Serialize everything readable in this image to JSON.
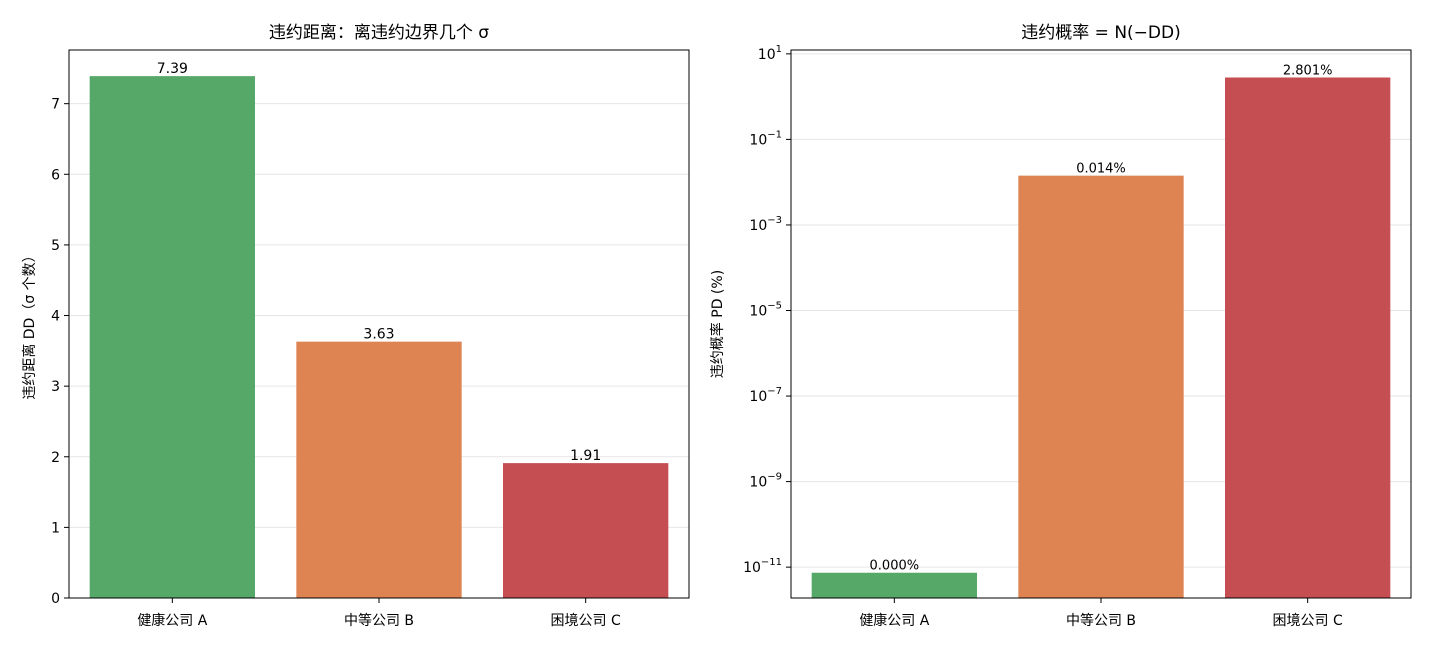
{
  "chart_data": [
    {
      "type": "bar",
      "title": "违约距离：离违约边界几个 σ",
      "xlabel": "",
      "ylabel": "违约距离 DD（σ 个数）",
      "categories": [
        "健康公司 A",
        "中等公司 B",
        "困境公司 C"
      ],
      "values": [
        7.39,
        3.63,
        1.91
      ],
      "data_labels": [
        "7.39",
        "3.63",
        "1.91"
      ],
      "colors": [
        "#55a868",
        "#dd8452",
        "#c44e52"
      ],
      "ylim": [
        0,
        7.76
      ],
      "yticks": [
        0,
        1,
        2,
        3,
        4,
        5,
        6,
        7
      ],
      "ytick_labels": [
        "0",
        "1",
        "2",
        "3",
        "4",
        "5",
        "6",
        "7"
      ],
      "grid": "y"
    },
    {
      "type": "bar",
      "title": "违约概率 = N(−DD)",
      "xlabel": "",
      "ylabel": "违约概率 PD (%)",
      "yscale": "log",
      "categories": [
        "健康公司 A",
        "中等公司 B",
        "困境公司 C"
      ],
      "values": [
        7.4e-12,
        0.0142,
        2.801
      ],
      "data_labels": [
        "0.000%",
        "0.014%",
        "2.801%"
      ],
      "colors": [
        "#55a868",
        "#dd8452",
        "#c44e52"
      ],
      "ylim": [
        1.9e-12,
        12.3
      ],
      "yticks": [
        1e-11,
        1e-09,
        1e-07,
        1e-05,
        0.001,
        0.1,
        10
      ],
      "ytick_labels": [
        {
          "base": "10",
          "exp": "−11"
        },
        {
          "base": "10",
          "exp": "−9"
        },
        {
          "base": "10",
          "exp": "−7"
        },
        {
          "base": "10",
          "exp": "−5"
        },
        {
          "base": "10",
          "exp": "−3"
        },
        {
          "base": "10",
          "exp": "−1"
        },
        {
          "base": "10",
          "exp": "1"
        }
      ],
      "grid": "y"
    }
  ]
}
